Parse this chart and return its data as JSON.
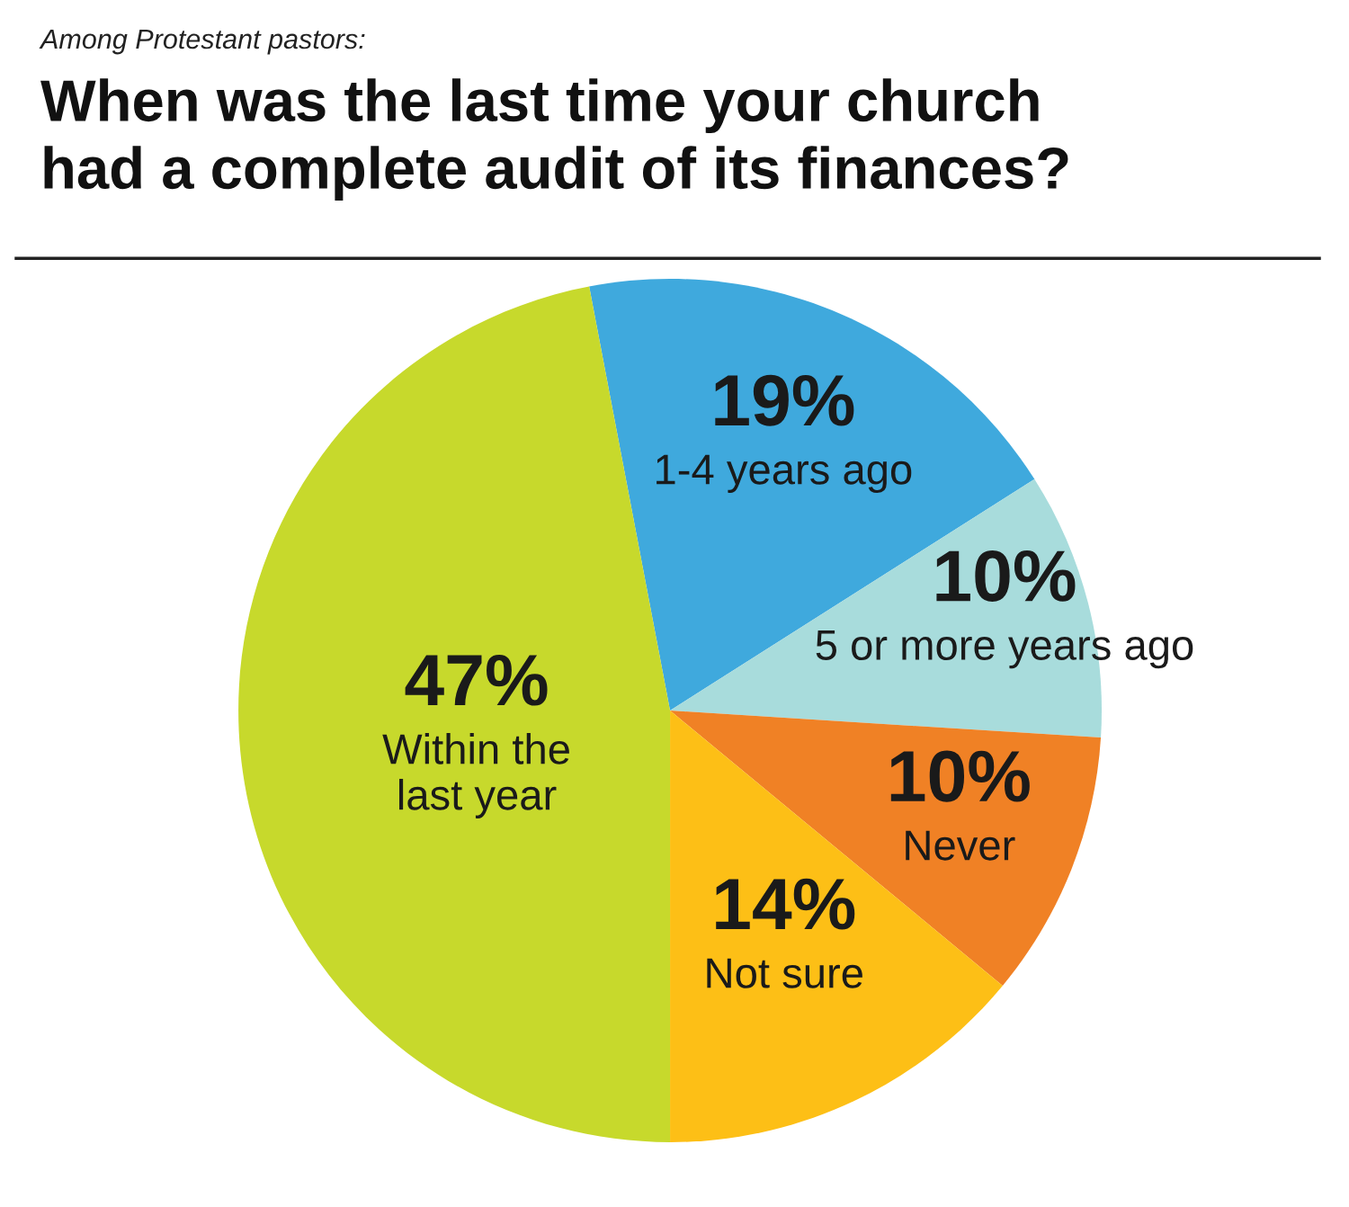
{
  "chart_data": {
    "type": "pie",
    "subtitle": "Among Protestant pastors:",
    "title": "When was the last time your church\nhad a complete audit of its finances?",
    "categories": [
      "1-4 years ago",
      "5 or more years ago",
      "Never",
      "Not sure",
      "Within the\nlast year"
    ],
    "values": [
      19,
      10,
      10,
      14,
      47
    ],
    "value_labels": [
      "19%",
      "10%",
      "10%",
      "14%",
      "47%"
    ],
    "colors": [
      "#3fa9dd",
      "#a8dcdc",
      "#f08125",
      "#fdbf16",
      "#c7d92c"
    ]
  }
}
